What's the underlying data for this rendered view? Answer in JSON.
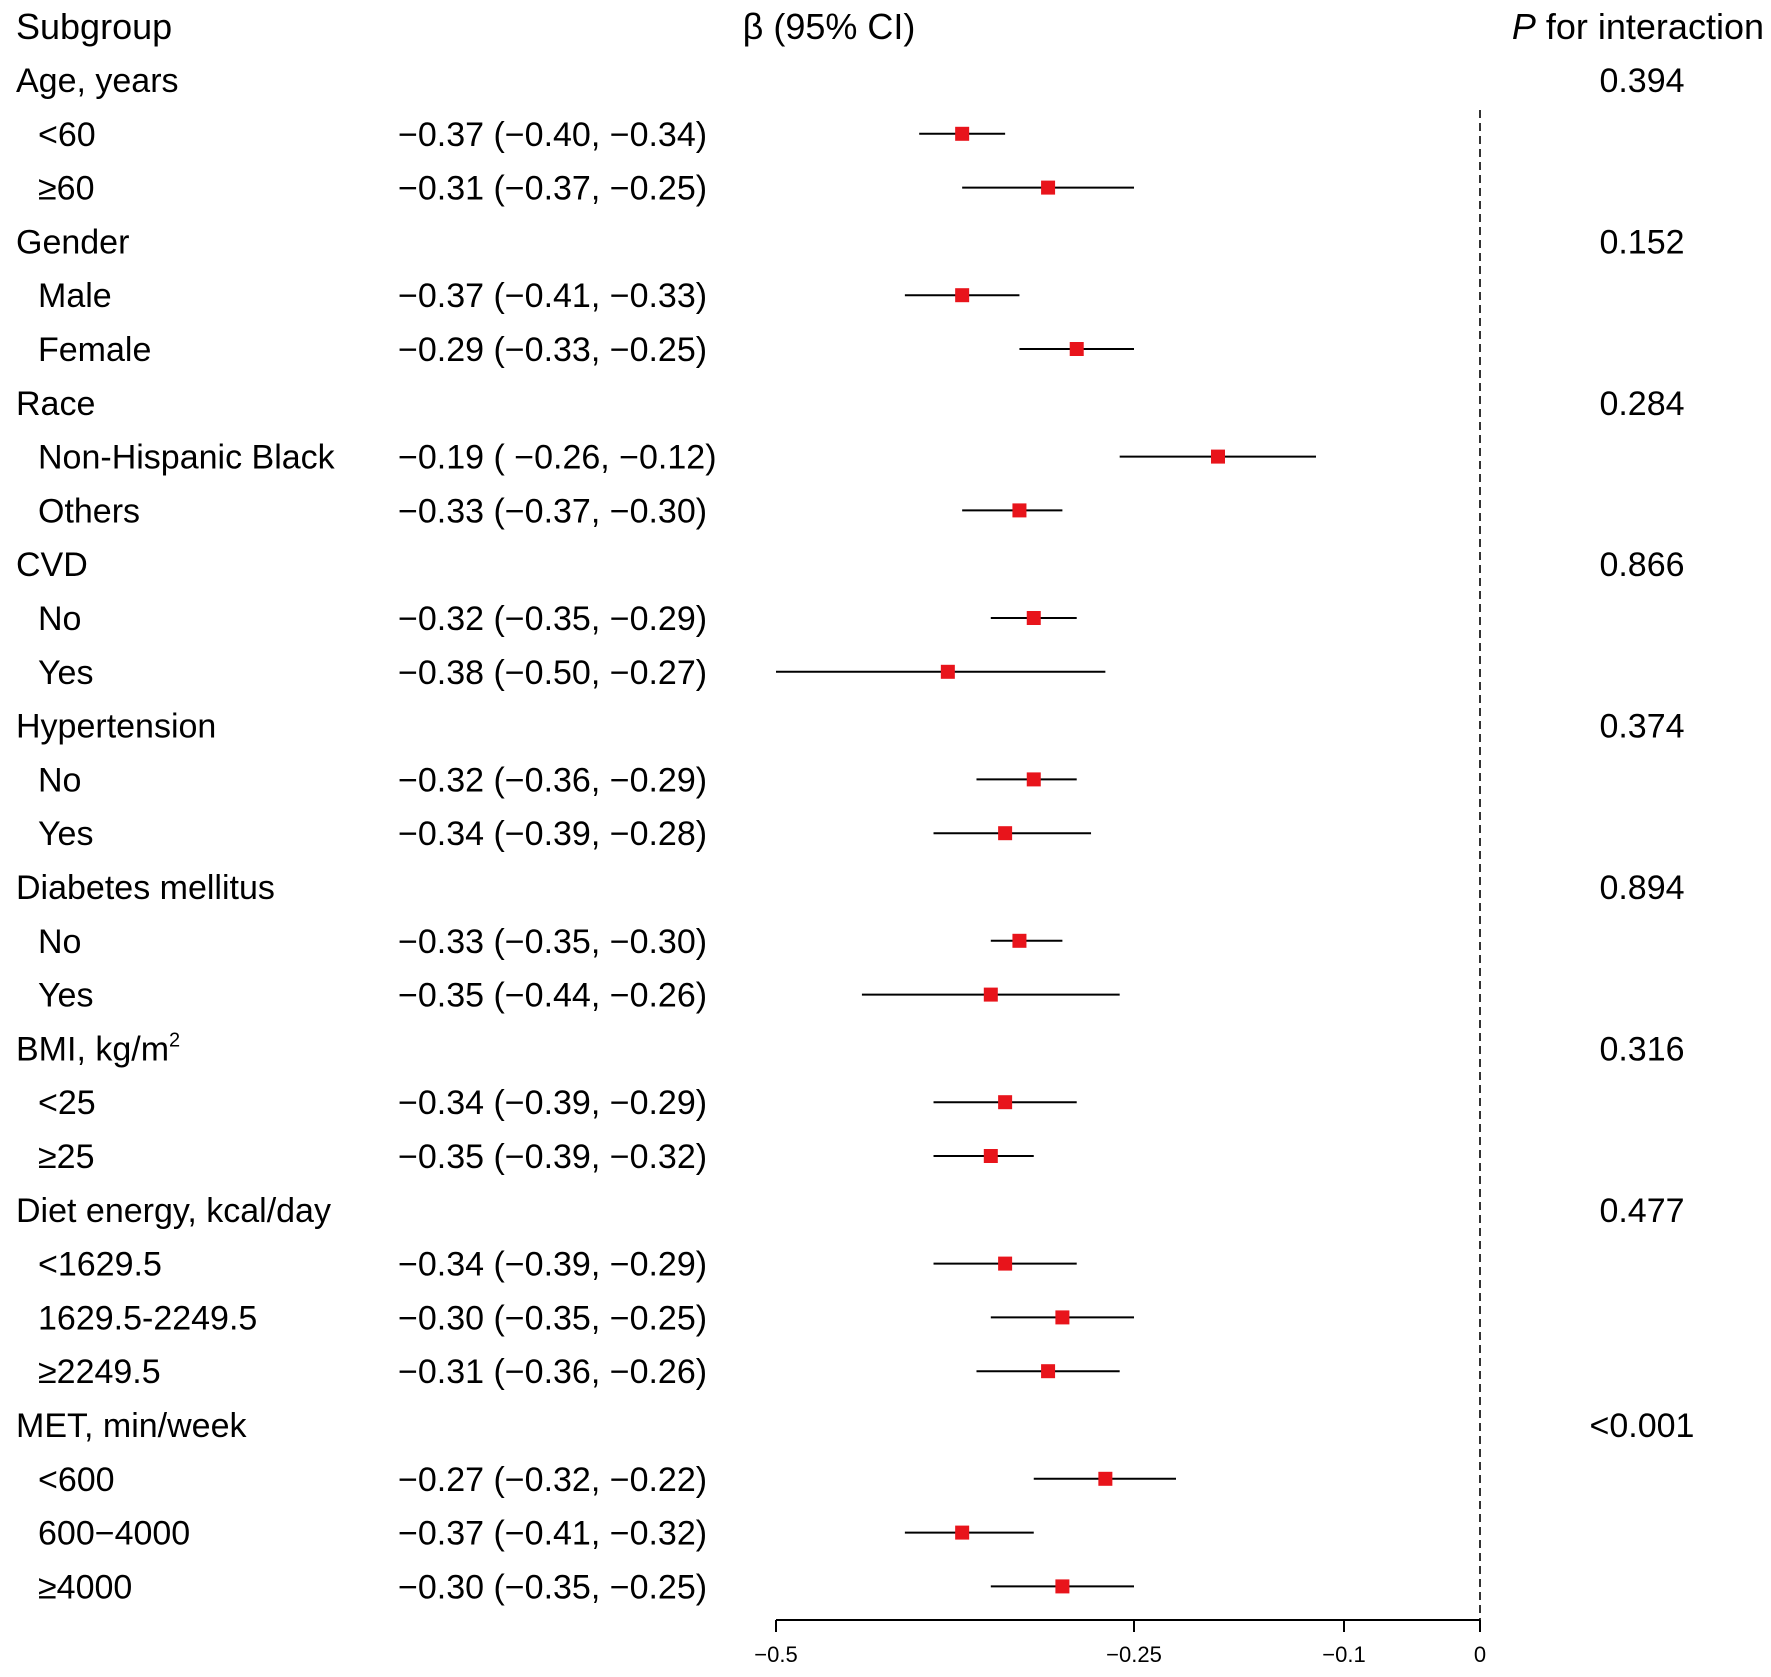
{
  "chart_data": {
    "type": "forest",
    "title": "",
    "headers": {
      "subgroup": "Subgroup",
      "estimate": "β (95% CI)",
      "p_italic": "P",
      "p_rest": " for interaction"
    },
    "xaxis": {
      "ticks": [
        -0.5,
        -0.25,
        -0.1,
        0
      ],
      "tick_labels": [
        "−0.5",
        "−0.25",
        "−0.1",
        "0"
      ],
      "reference_line": 0,
      "scale": "log-like (non-linear, tick positions as drawn)"
    },
    "colors": {
      "marker": "#e8141b",
      "line": "#000000"
    },
    "groups": [
      {
        "label": "Age, years",
        "p": "0.394",
        "rows": [
          {
            "label": "<60",
            "text": "−0.37 (−0.40, −0.34)",
            "est": -0.37,
            "lo": -0.4,
            "hi": -0.34
          },
          {
            "label": "≥60",
            "text": "−0.31 (−0.37, −0.25)",
            "est": -0.31,
            "lo": -0.37,
            "hi": -0.25
          }
        ]
      },
      {
        "label": "Gender",
        "p": "0.152",
        "rows": [
          {
            "label": "Male",
            "text": "−0.37 (−0.41, −0.33)",
            "est": -0.37,
            "lo": -0.41,
            "hi": -0.33
          },
          {
            "label": "Female",
            "text": "−0.29 (−0.33, −0.25)",
            "est": -0.29,
            "lo": -0.33,
            "hi": -0.25
          }
        ]
      },
      {
        "label": "Race",
        "p": "0.284",
        "rows": [
          {
            "label": "Non-Hispanic Black",
            "text": "−0.19 ( −0.26, −0.12)",
            "est": -0.19,
            "lo": -0.26,
            "hi": -0.12
          },
          {
            "label": "Others",
            "text": "−0.33 (−0.37, −0.30)",
            "est": -0.33,
            "lo": -0.37,
            "hi": -0.3
          }
        ]
      },
      {
        "label": "CVD",
        "p": "0.866",
        "rows": [
          {
            "label": "No",
            "text": "−0.32 (−0.35, −0.29)",
            "est": -0.32,
            "lo": -0.35,
            "hi": -0.29
          },
          {
            "label": "Yes",
            "text": "−0.38 (−0.50, −0.27)",
            "est": -0.38,
            "lo": -0.5,
            "hi": -0.27
          }
        ]
      },
      {
        "label": "Hypertension",
        "p": "0.374",
        "rows": [
          {
            "label": "No",
            "text": "−0.32 (−0.36, −0.29)",
            "est": -0.32,
            "lo": -0.36,
            "hi": -0.29
          },
          {
            "label": "Yes",
            "text": "−0.34 (−0.39, −0.28)",
            "est": -0.34,
            "lo": -0.39,
            "hi": -0.28
          }
        ]
      },
      {
        "label": "Diabetes mellitus",
        "p": "0.894",
        "rows": [
          {
            "label": "No",
            "text": "−0.33 (−0.35, −0.30)",
            "est": -0.33,
            "lo": -0.35,
            "hi": -0.3
          },
          {
            "label": "Yes",
            "text": "−0.35 (−0.44, −0.26)",
            "est": -0.35,
            "lo": -0.44,
            "hi": -0.26
          }
        ]
      },
      {
        "label": "BMI, kg/m",
        "sup": "2",
        "p": "0.316",
        "rows": [
          {
            "label": "<25",
            "text": "−0.34 (−0.39, −0.29)",
            "est": -0.34,
            "lo": -0.39,
            "hi": -0.29
          },
          {
            "label": "≥25",
            "text": "−0.35 (−0.39, −0.32)",
            "est": -0.35,
            "lo": -0.39,
            "hi": -0.32
          }
        ]
      },
      {
        "label": "Diet energy, kcal/day",
        "p": "0.477",
        "rows": [
          {
            "label": "<1629.5",
            "text": "−0.34 (−0.39, −0.29)",
            "est": -0.34,
            "lo": -0.39,
            "hi": -0.29
          },
          {
            "label": "1629.5-2249.5",
            "text": "−0.30 (−0.35, −0.25)",
            "est": -0.3,
            "lo": -0.35,
            "hi": -0.25
          },
          {
            "label": "≥2249.5",
            "text": "−0.31 (−0.36, −0.26)",
            "est": -0.31,
            "lo": -0.36,
            "hi": -0.26
          }
        ]
      },
      {
        "label": "MET, min/week",
        "p": "<0.001",
        "rows": [
          {
            "label": "<600",
            "text": "−0.27 (−0.32, −0.22)",
            "est": -0.27,
            "lo": -0.32,
            "hi": -0.22
          },
          {
            "label": "600−4000",
            "text": "−0.37 (−0.41, −0.32)",
            "est": -0.37,
            "lo": -0.41,
            "hi": -0.32
          },
          {
            "label": "≥4000",
            "text": "−0.30 (−0.35, −0.25)",
            "est": -0.3,
            "lo": -0.35,
            "hi": -0.25
          }
        ]
      }
    ]
  }
}
